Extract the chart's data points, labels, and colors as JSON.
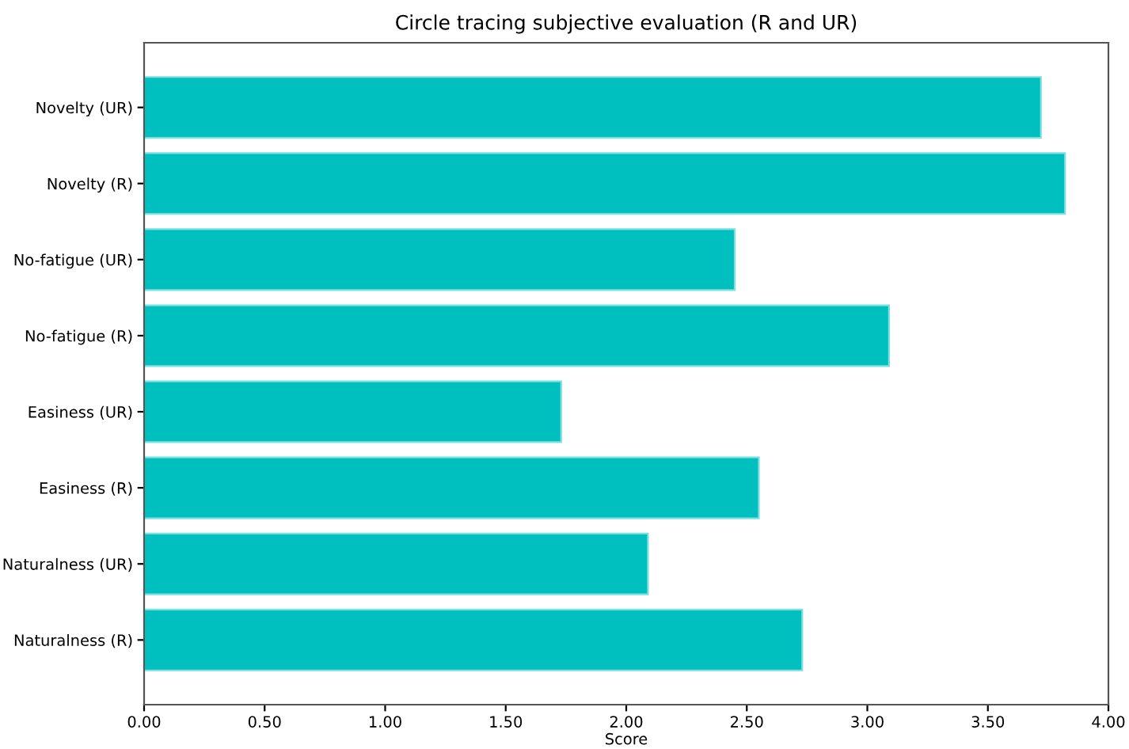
{
  "chart_data": {
    "type": "bar",
    "orientation": "horizontal",
    "title": "Circle tracing subjective evaluation (R and UR)",
    "xlabel": "Score",
    "categories": [
      "Novelty (UR)",
      "Novelty (R)",
      "No-fatigue (UR)",
      "No-fatigue (R)",
      "Easiness (UR)",
      "Easiness (R)",
      "Naturalness (UR)",
      "Naturalness (R)"
    ],
    "values": [
      3.72,
      3.82,
      2.45,
      3.09,
      1.73,
      2.55,
      2.09,
      2.73
    ],
    "color": "#00bfbf",
    "xlim": [
      0,
      4
    ],
    "xticks": [
      {
        "value": 0,
        "label": "0.00"
      },
      {
        "value": 0.5,
        "label": "0.50"
      },
      {
        "value": 1,
        "label": "1.00"
      },
      {
        "value": 1.5,
        "label": "1.50"
      },
      {
        "value": 2,
        "label": "2.00"
      },
      {
        "value": 2.5,
        "label": "2.50"
      },
      {
        "value": 3,
        "label": "3.00"
      },
      {
        "value": 3.5,
        "label": "3.50"
      },
      {
        "value": 4,
        "label": "4.00"
      }
    ],
    "grid": false
  }
}
